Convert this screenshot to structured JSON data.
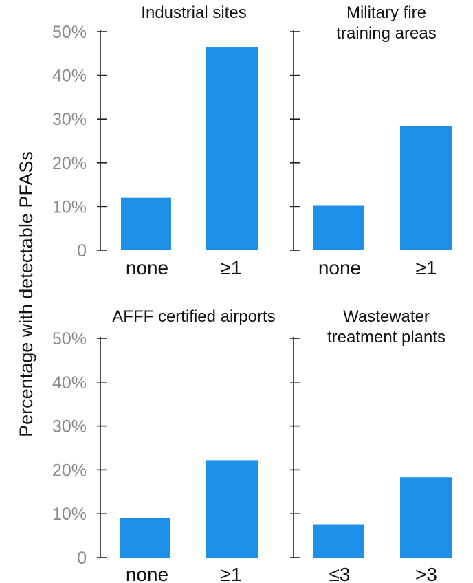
{
  "figure": {
    "ylabel": "Percentage with detectable PFASs",
    "bar_color": "#1e90e8"
  },
  "chart_data": [
    {
      "type": "bar",
      "title_lines": [
        "Industrial sites"
      ],
      "categories": [
        "none",
        "≥1"
      ],
      "values": [
        12,
        46.5
      ],
      "ylim": [
        0,
        50
      ],
      "yticks": [
        "0",
        "10%",
        "20%",
        "30%",
        "40%",
        "50%"
      ]
    },
    {
      "type": "bar",
      "title_lines": [
        "Military fire",
        "training areas"
      ],
      "categories": [
        "none",
        "≥1"
      ],
      "values": [
        10.3,
        28.3
      ],
      "ylim": [
        0,
        50
      ],
      "yticks": []
    },
    {
      "type": "bar",
      "title_lines": [
        "AFFF certified airports"
      ],
      "categories": [
        "none",
        "≥1"
      ],
      "values": [
        9,
        22.2
      ],
      "ylim": [
        0,
        50
      ],
      "yticks": [
        "0",
        "10%",
        "20%",
        "30%",
        "40%",
        "50%"
      ]
    },
    {
      "type": "bar",
      "title_lines": [
        "Wastewater",
        "treatment plants"
      ],
      "categories": [
        "≤3",
        ">3"
      ],
      "values": [
        7.6,
        18.3
      ],
      "ylim": [
        0,
        50
      ],
      "yticks": []
    }
  ]
}
